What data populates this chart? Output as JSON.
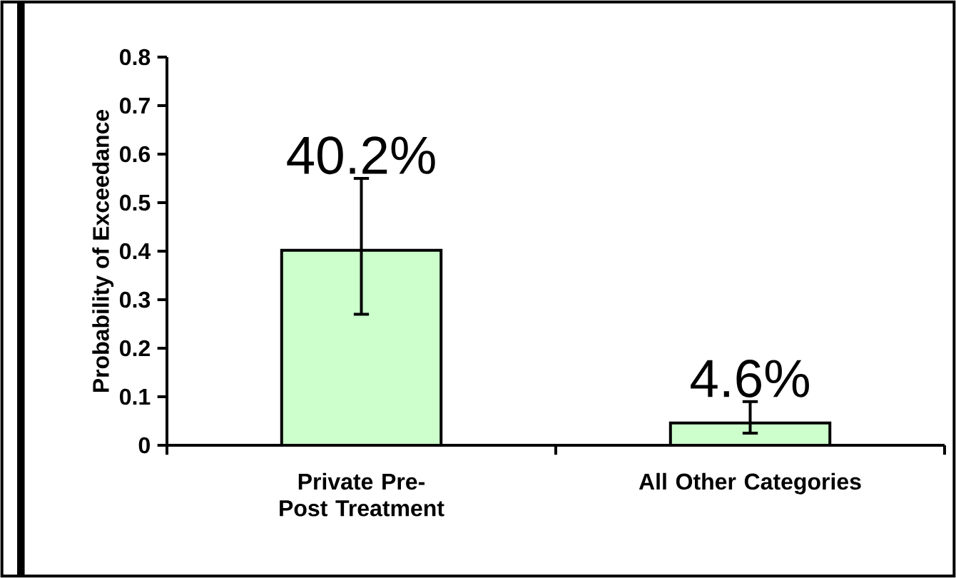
{
  "chart_data": {
    "type": "bar",
    "ylabel": "Probability of Exceedance",
    "categories": [
      "Private Pre-Post Treatment",
      "All Other Categories"
    ],
    "values": [
      0.402,
      0.046
    ],
    "color": "#ccffcc",
    "errors": [
      [
        0.27,
        0.55
      ],
      [
        0.025,
        0.09
      ]
    ],
    "value_labels": [
      "40.2%",
      "4.6%"
    ],
    "ylim": [
      0,
      0.8
    ],
    "yticks": [
      0,
      0.1,
      0.2,
      0.3,
      0.4,
      0.5,
      0.6,
      0.7,
      0.8
    ]
  }
}
